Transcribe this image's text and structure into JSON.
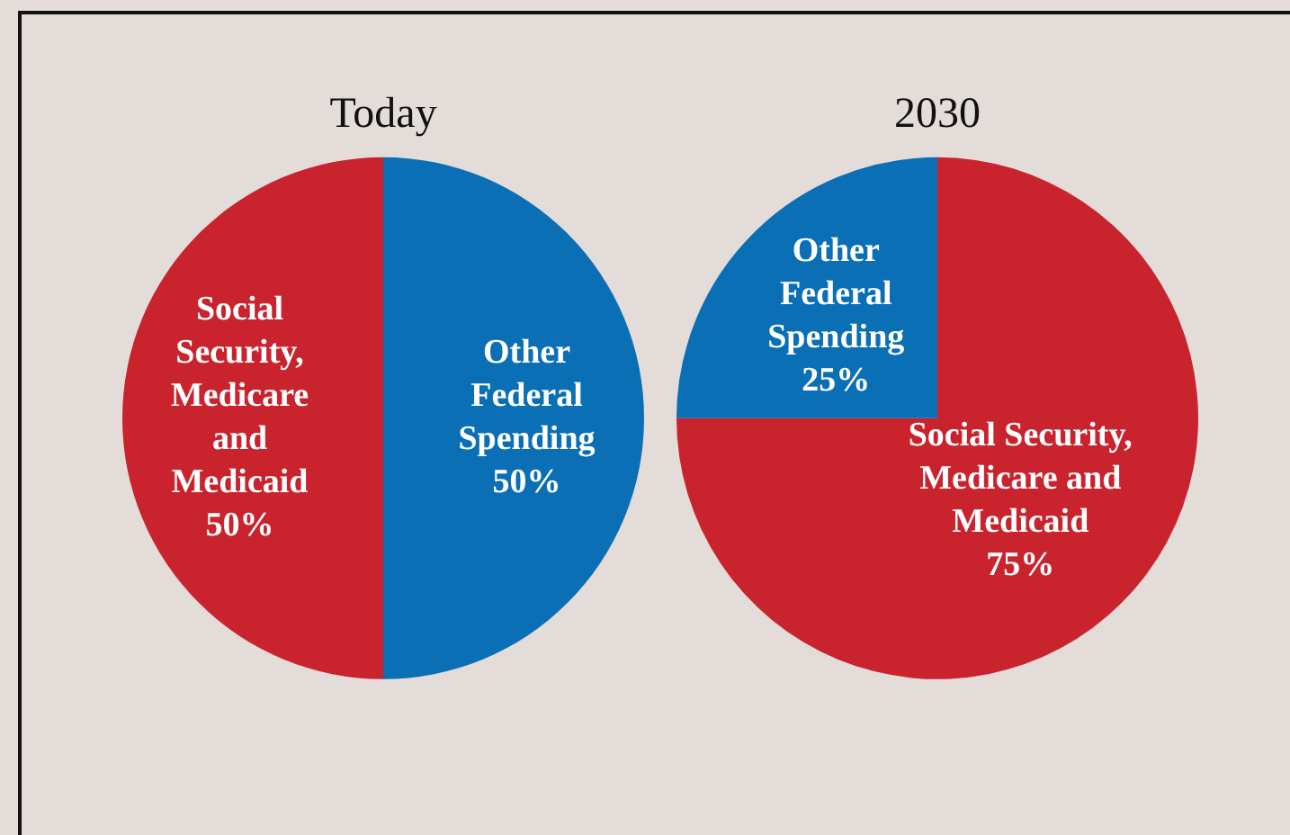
{
  "chart_data": [
    {
      "type": "pie",
      "title": "Today",
      "categories": [
        "Other Federal Spending",
        "Social Security, Medicare and Medicaid"
      ],
      "values": [
        50,
        50
      ],
      "colors": [
        "#0b6fb5",
        "#c9232e"
      ],
      "value_labels": [
        "50%",
        "50%"
      ]
    },
    {
      "type": "pie",
      "title": "2030",
      "categories": [
        "Social Security, Medicare and Medicaid",
        "Other Federal Spending"
      ],
      "values": [
        75,
        25
      ],
      "colors": [
        "#c9232e",
        "#0b6fb5"
      ],
      "value_labels": [
        "75%",
        "25%"
      ]
    }
  ]
}
